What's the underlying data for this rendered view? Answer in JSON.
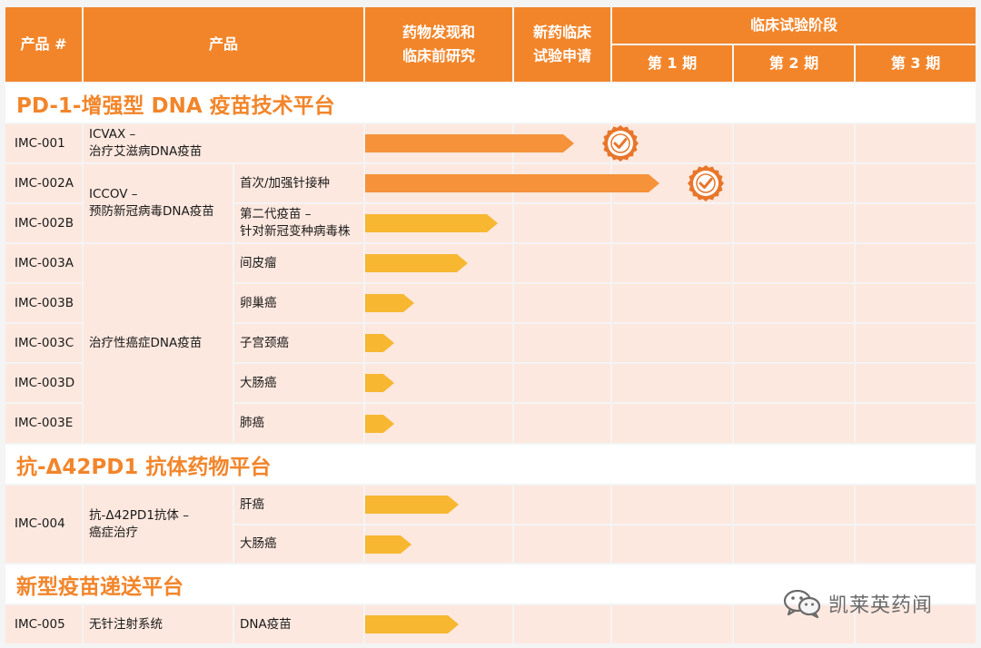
{
  "header": {
    "product_no": "产品 #",
    "product": "产品",
    "discovery": "药物发现和\n临床前研究",
    "ind": "新药临床\n试验申请",
    "clinical": "临床试验阶段",
    "phase1": "第 1 期",
    "phase2": "第 2 期",
    "phase3": "第 3 期"
  },
  "sections": [
    {
      "title": "PD-1-增强型 DNA 疫苗技术平台"
    },
    {
      "title": "抗-Δ42PD1 抗体药物平台"
    },
    {
      "title": "新型疫苗递送平台"
    }
  ],
  "rows": [
    {
      "id": "IMC-001",
      "product": "ICVAX –\n治疗艾滋病DNA疫苗",
      "indication": "",
      "progress": 0.85,
      "color": "#f5923a",
      "milestone": true
    },
    {
      "id": "IMC-002A",
      "product": "ICCOV –\n预防新冠病毒DNA疫苗",
      "indication": "首次/加强针接种",
      "progress": 1.2,
      "color": "#f5923a",
      "milestone": true
    },
    {
      "id": "IMC-002B",
      "product": "",
      "indication": "第二代疫苗 –\n针对新冠变种病毒株",
      "progress": 0.54,
      "color": "#f7b731",
      "milestone": false
    },
    {
      "id": "IMC-003A",
      "product": "治疗性癌症DNA疫苗",
      "indication": "间皮瘤",
      "progress": 0.42,
      "color": "#f7b731",
      "milestone": false
    },
    {
      "id": "IMC-003B",
      "product": "",
      "indication": "卵巢癌",
      "progress": 0.2,
      "color": "#f7b731",
      "milestone": false
    },
    {
      "id": "IMC-003C",
      "product": "",
      "indication": "子宫颈癌",
      "progress": 0.12,
      "color": "#f7b731",
      "milestone": false
    },
    {
      "id": "IMC-003D",
      "product": "",
      "indication": "大肠癌",
      "progress": 0.12,
      "color": "#f7b731",
      "milestone": false
    },
    {
      "id": "IMC-003E",
      "product": "",
      "indication": "肺癌",
      "progress": 0.12,
      "color": "#f7b731",
      "milestone": false
    },
    {
      "id": "IMC-004",
      "product": "抗-Δ42PD1抗体 –\n癌症治疗",
      "indication": "肝癌",
      "progress": 0.38,
      "color": "#f7b731",
      "milestone": false
    },
    {
      "id": "",
      "product": "",
      "indication": "大肠癌",
      "progress": 0.19,
      "color": "#f7b731",
      "milestone": false
    },
    {
      "id": "IMC-005",
      "product": "无针注射系统",
      "indication": "DNA疫苗",
      "progress": 0.38,
      "color": "#f7b731",
      "milestone": false
    }
  ],
  "watermark": {
    "text": "凯莱英药闻",
    "icon": "wechat-icon"
  },
  "colors": {
    "header": "#f2852a",
    "cell": "#fde8df",
    "bar_orange": "#f5923a",
    "bar_yellow": "#f7b731",
    "badge": "#e8762a"
  }
}
